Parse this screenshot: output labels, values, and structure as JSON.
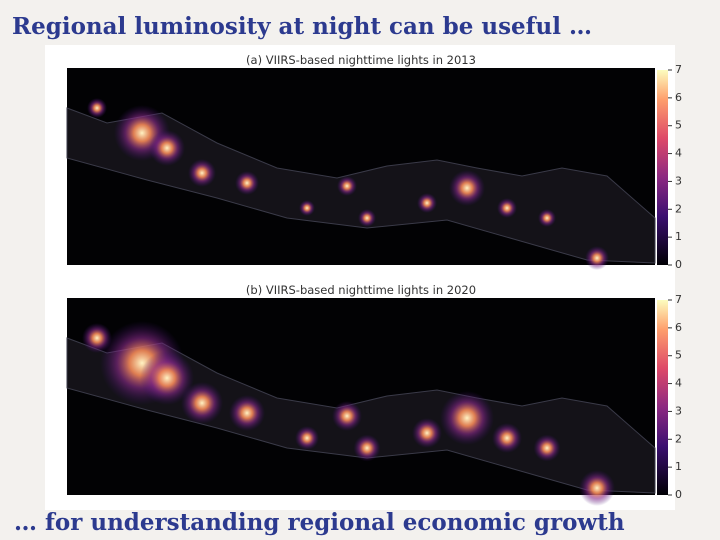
{
  "title": "Regional luminosity at night can be  useful …",
  "footer": "… for understanding regional economic growth",
  "panels": [
    {
      "title": "(a) VIIRS-based nighttime lights in 2013",
      "colorbar_lim": [
        0,
        7
      ],
      "colorbar_ticks": [
        0,
        1,
        2,
        3,
        4,
        5,
        6,
        7
      ]
    },
    {
      "title": "(b) VIIRS-based nighttime lights in 2020",
      "colorbar_lim": [
        0,
        7
      ],
      "colorbar_ticks": [
        0,
        1,
        2,
        3,
        4,
        5,
        6,
        7
      ]
    }
  ]
}
